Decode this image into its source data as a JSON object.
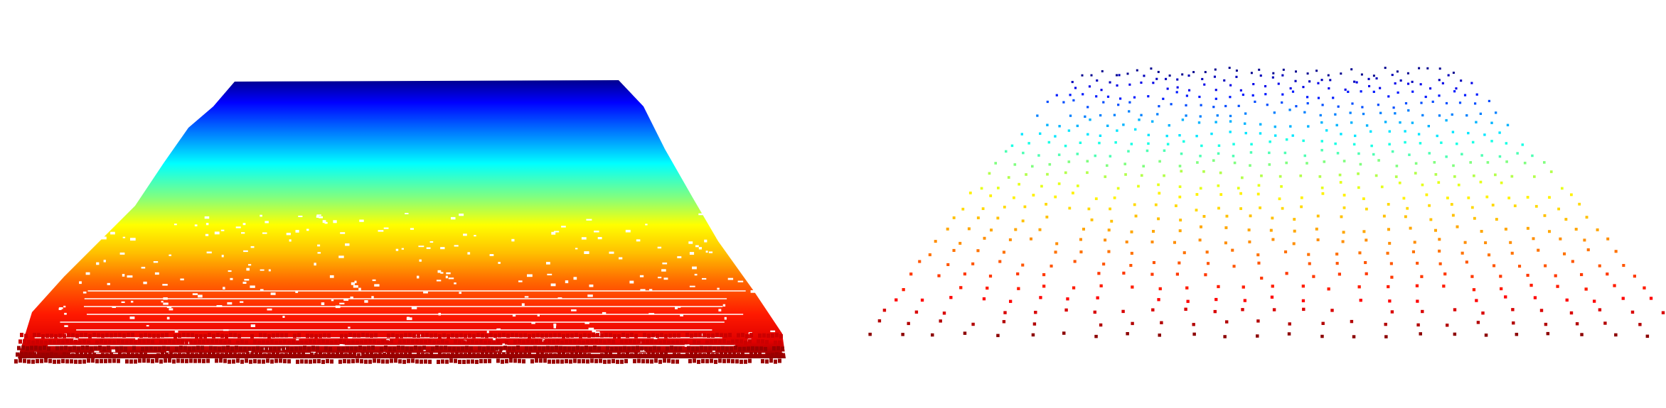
{
  "figure": {
    "panels": [
      {
        "id": "dense",
        "description_name": "dense-point-cloud-panel"
      },
      {
        "id": "sparse",
        "description_name": "sparse-point-cloud-panel"
      }
    ],
    "colormap": [
      "#00008f",
      "#0000ff",
      "#00ffff",
      "#ffff00",
      "#ff8000",
      "#ff0000",
      "#800000"
    ],
    "background": "#ffffff"
  }
}
